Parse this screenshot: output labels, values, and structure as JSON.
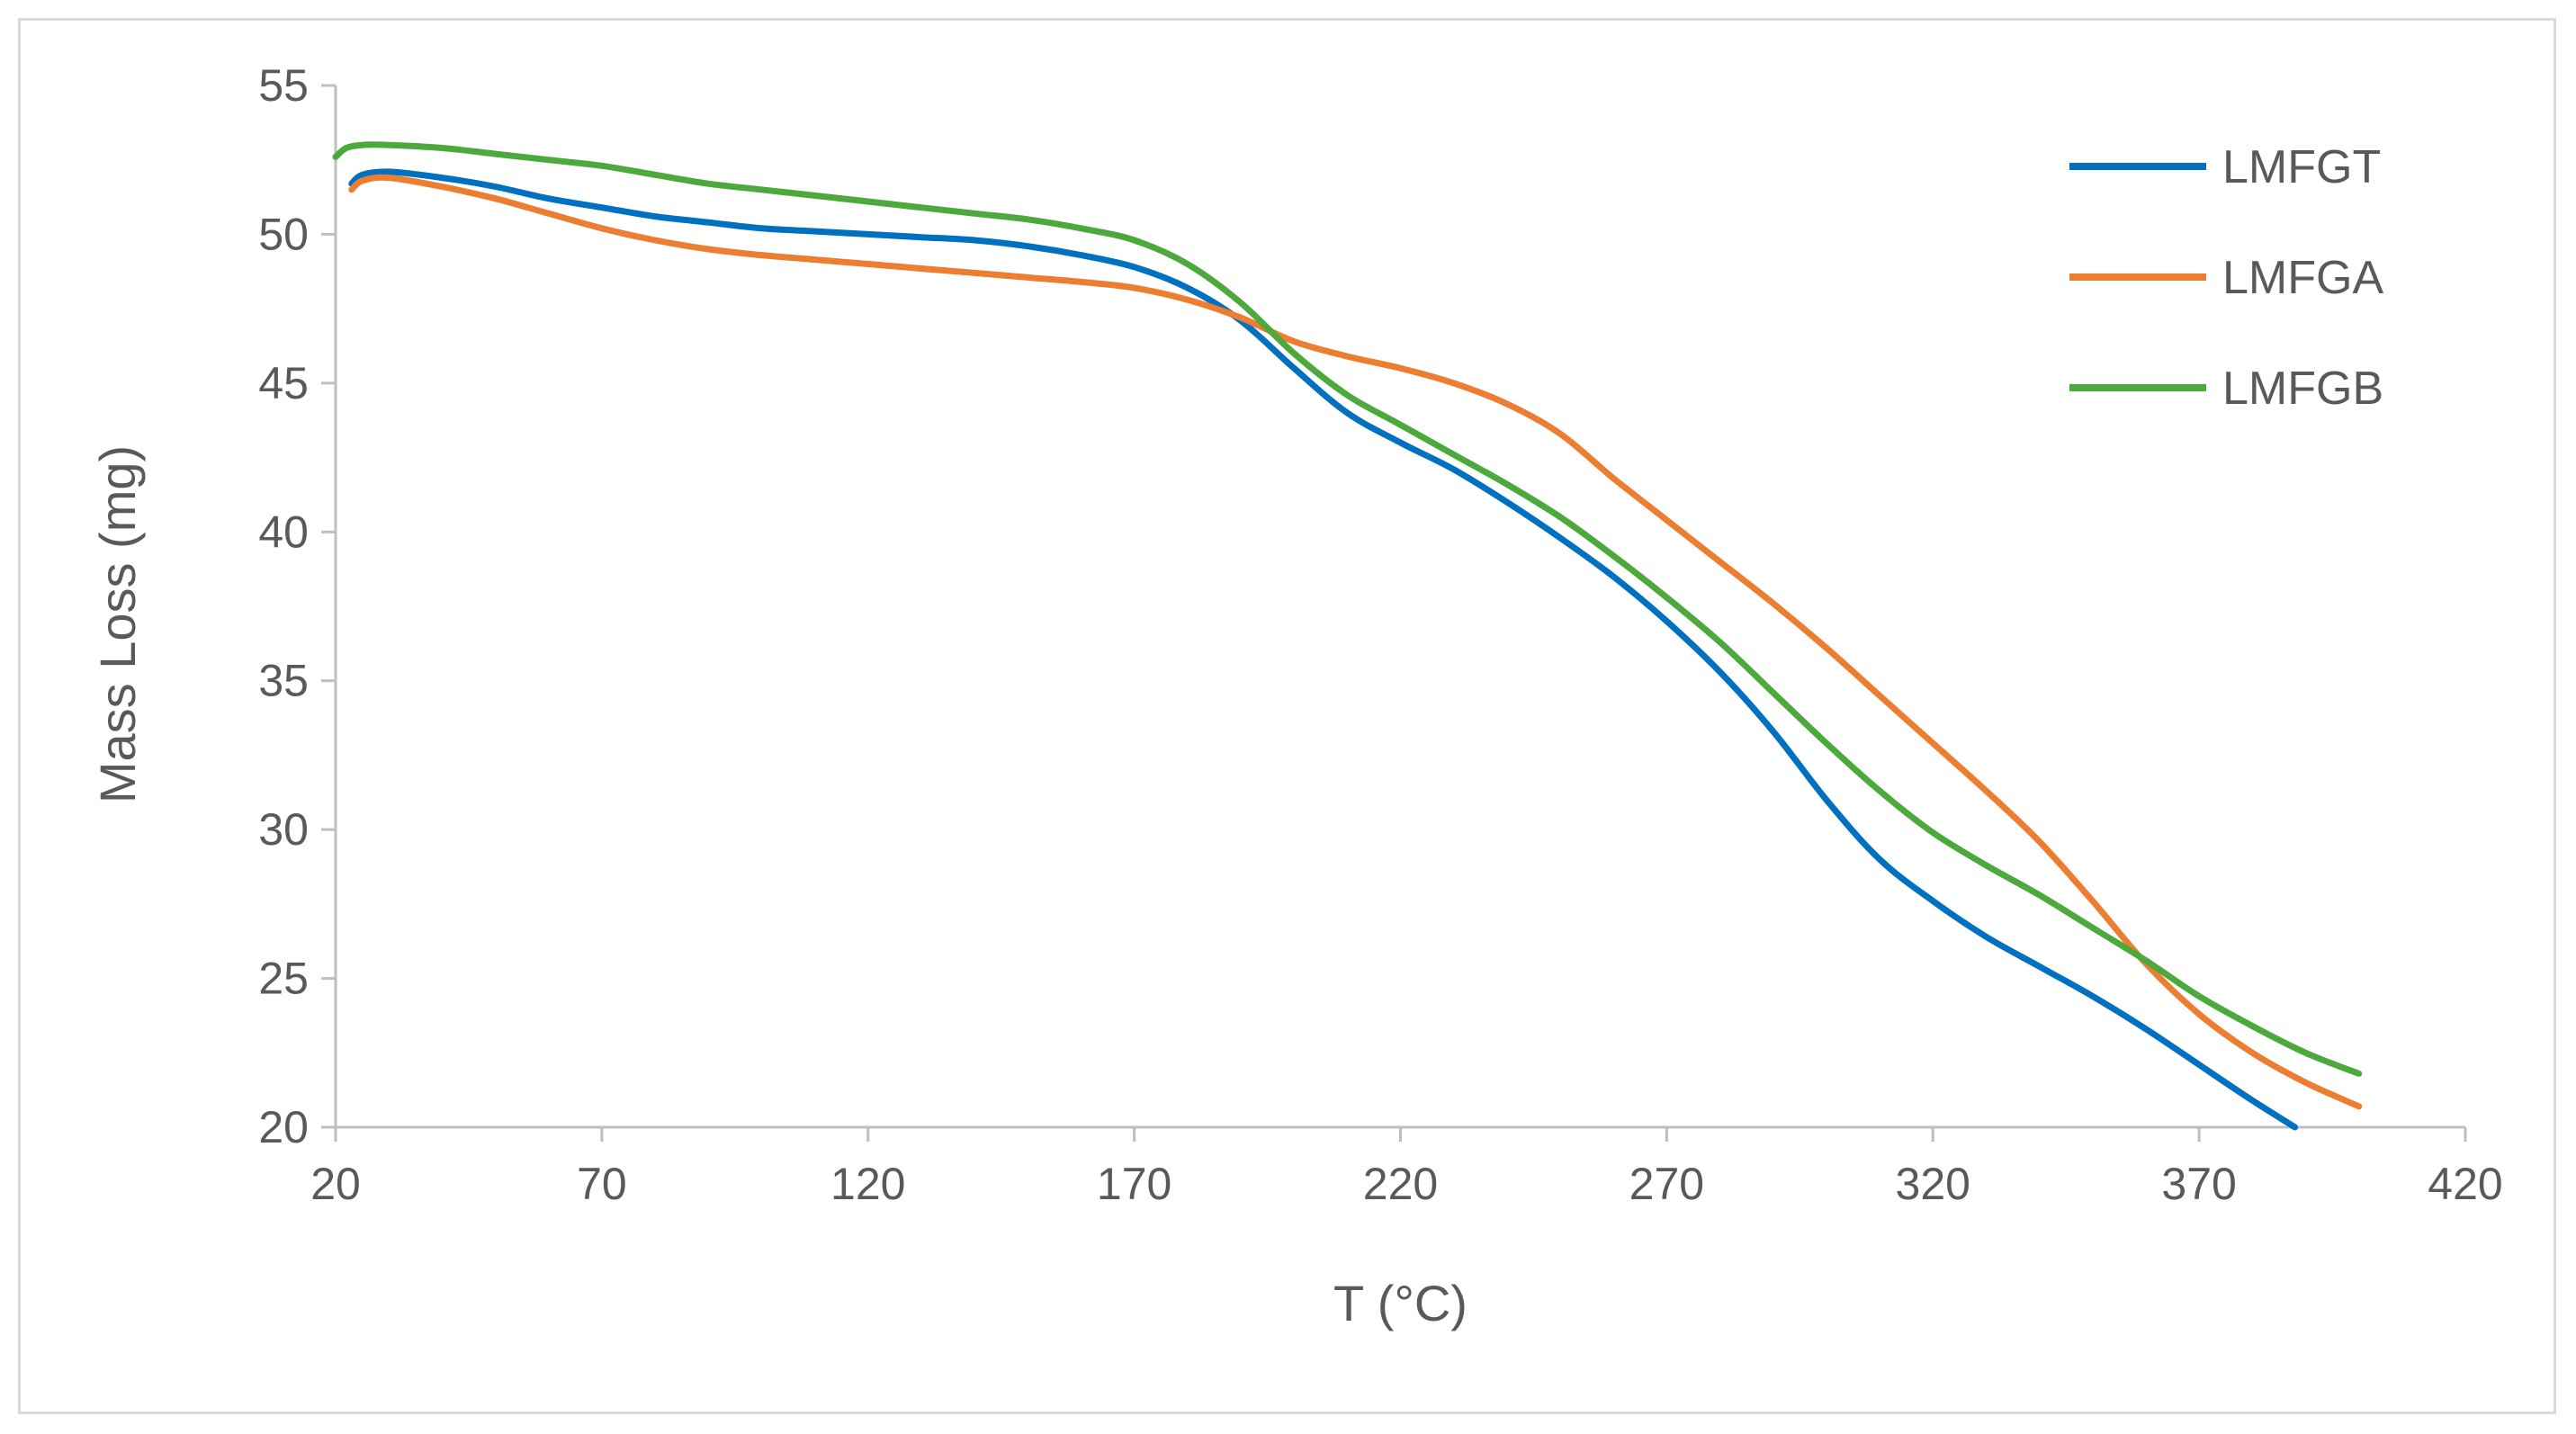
{
  "chart_data": {
    "type": "line",
    "title": "",
    "xlabel": "T (°C)",
    "ylabel": "Mass Loss (mg)",
    "xlim": [
      20,
      420
    ],
    "ylim": [
      20,
      55
    ],
    "xticks": [
      20,
      70,
      120,
      170,
      220,
      270,
      320,
      370,
      420
    ],
    "yticks": [
      20,
      25,
      30,
      35,
      40,
      45,
      50,
      55
    ],
    "grid": false,
    "legend_position": "top-right",
    "series": [
      {
        "name": "LMFGT",
        "color": "#0070C0",
        "points": [
          [
            23,
            51.7
          ],
          [
            25,
            52.0
          ],
          [
            30,
            52.1
          ],
          [
            40,
            51.9
          ],
          [
            50,
            51.6
          ],
          [
            60,
            51.2
          ],
          [
            70,
            50.9
          ],
          [
            80,
            50.6
          ],
          [
            90,
            50.4
          ],
          [
            100,
            50.2
          ],
          [
            110,
            50.1
          ],
          [
            120,
            50.0
          ],
          [
            130,
            49.9
          ],
          [
            140,
            49.8
          ],
          [
            150,
            49.6
          ],
          [
            160,
            49.3
          ],
          [
            170,
            48.9
          ],
          [
            180,
            48.2
          ],
          [
            190,
            47.1
          ],
          [
            200,
            45.5
          ],
          [
            210,
            44.0
          ],
          [
            220,
            43.0
          ],
          [
            230,
            42.1
          ],
          [
            240,
            41.0
          ],
          [
            250,
            39.8
          ],
          [
            260,
            38.5
          ],
          [
            270,
            37.0
          ],
          [
            280,
            35.3
          ],
          [
            290,
            33.3
          ],
          [
            300,
            31.0
          ],
          [
            310,
            29.0
          ],
          [
            320,
            27.6
          ],
          [
            330,
            26.4
          ],
          [
            340,
            25.4
          ],
          [
            350,
            24.4
          ],
          [
            360,
            23.3
          ],
          [
            370,
            22.1
          ],
          [
            380,
            20.9
          ],
          [
            388,
            20.0
          ]
        ]
      },
      {
        "name": "LMFGA",
        "color": "#ED7D31",
        "points": [
          [
            23,
            51.5
          ],
          [
            25,
            51.8
          ],
          [
            30,
            51.9
          ],
          [
            40,
            51.6
          ],
          [
            50,
            51.2
          ],
          [
            60,
            50.7
          ],
          [
            70,
            50.2
          ],
          [
            80,
            49.8
          ],
          [
            90,
            49.5
          ],
          [
            100,
            49.3
          ],
          [
            110,
            49.15
          ],
          [
            120,
            49.0
          ],
          [
            130,
            48.85
          ],
          [
            140,
            48.7
          ],
          [
            150,
            48.55
          ],
          [
            160,
            48.4
          ],
          [
            170,
            48.2
          ],
          [
            180,
            47.8
          ],
          [
            190,
            47.2
          ],
          [
            200,
            46.4
          ],
          [
            210,
            45.9
          ],
          [
            220,
            45.5
          ],
          [
            230,
            45.0
          ],
          [
            240,
            44.3
          ],
          [
            250,
            43.3
          ],
          [
            260,
            41.8
          ],
          [
            270,
            40.4
          ],
          [
            280,
            39.0
          ],
          [
            290,
            37.6
          ],
          [
            300,
            36.1
          ],
          [
            310,
            34.5
          ],
          [
            320,
            32.9
          ],
          [
            330,
            31.3
          ],
          [
            340,
            29.6
          ],
          [
            350,
            27.6
          ],
          [
            360,
            25.5
          ],
          [
            370,
            23.8
          ],
          [
            380,
            22.5
          ],
          [
            390,
            21.5
          ],
          [
            400,
            20.7
          ]
        ]
      },
      {
        "name": "LMFGB",
        "color": "#4CA93B",
        "points": [
          [
            20,
            52.6
          ],
          [
            22,
            52.9
          ],
          [
            25,
            53.0
          ],
          [
            30,
            53.0
          ],
          [
            40,
            52.9
          ],
          [
            50,
            52.7
          ],
          [
            60,
            52.5
          ],
          [
            70,
            52.3
          ],
          [
            80,
            52.0
          ],
          [
            90,
            51.7
          ],
          [
            100,
            51.5
          ],
          [
            110,
            51.3
          ],
          [
            120,
            51.1
          ],
          [
            130,
            50.9
          ],
          [
            140,
            50.7
          ],
          [
            150,
            50.5
          ],
          [
            160,
            50.2
          ],
          [
            170,
            49.8
          ],
          [
            180,
            49.0
          ],
          [
            190,
            47.7
          ],
          [
            200,
            46.0
          ],
          [
            210,
            44.6
          ],
          [
            220,
            43.6
          ],
          [
            230,
            42.6
          ],
          [
            240,
            41.6
          ],
          [
            250,
            40.5
          ],
          [
            260,
            39.2
          ],
          [
            270,
            37.8
          ],
          [
            280,
            36.3
          ],
          [
            290,
            34.6
          ],
          [
            300,
            32.9
          ],
          [
            310,
            31.3
          ],
          [
            320,
            29.9
          ],
          [
            330,
            28.8
          ],
          [
            340,
            27.8
          ],
          [
            350,
            26.7
          ],
          [
            360,
            25.6
          ],
          [
            370,
            24.4
          ],
          [
            380,
            23.4
          ],
          [
            390,
            22.5
          ],
          [
            400,
            21.8
          ]
        ]
      }
    ]
  }
}
